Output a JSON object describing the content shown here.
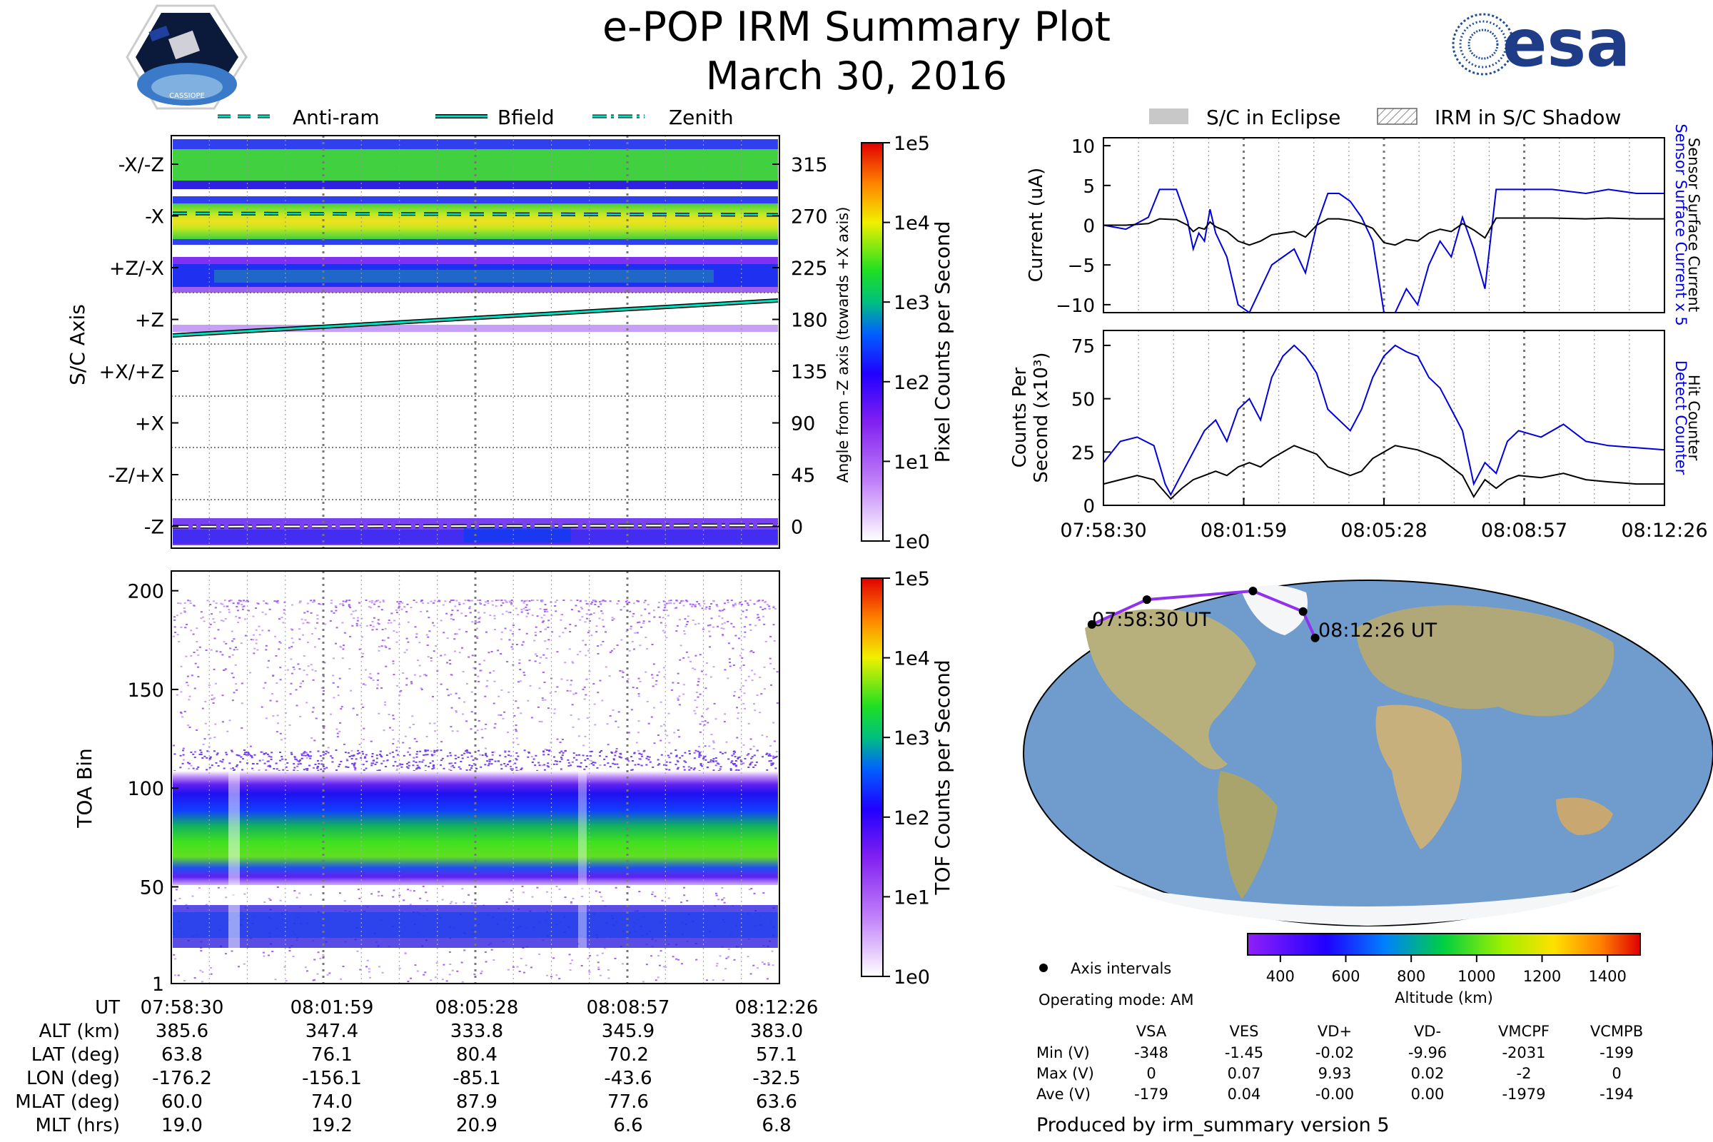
{
  "header": {
    "title": "e-POP IRM Summary Plot",
    "date": "March 30, 2016",
    "left_logo_text": "CASSIOPE",
    "right_logo_text": "esa"
  },
  "legend_top": {
    "items": [
      {
        "label": "Anti-ram",
        "style": "dashed"
      },
      {
        "label": "Bfield",
        "style": "solid"
      },
      {
        "label": "Zenith",
        "style": "dashdot"
      }
    ],
    "line_color": "#00e0c0"
  },
  "legend_right": {
    "items": [
      {
        "label": "S/C in Eclipse",
        "style": "gray-fill"
      },
      {
        "label": "IRM in S/C Shadow",
        "style": "hatch"
      }
    ]
  },
  "chart_data": [
    {
      "id": "pixel_spectrogram",
      "type": "heatmap",
      "ylabel": "S/C Axis",
      "y_tick_labels": [
        "-X/-Z",
        "-X",
        "+Z/-X",
        "+Z",
        "+X/+Z",
        "+X",
        "-Z/+X",
        "-Z"
      ],
      "right_axis_label": "Angle from -Z axis (towards +X axis)",
      "right_tick_labels": [
        "315",
        "270",
        "225",
        "180",
        "135",
        "90",
        "45",
        "0"
      ],
      "colorbar_label": "Pixel Counts per Second",
      "colorbar_ticks": [
        "1e5",
        "1e4",
        "1e3",
        "1e2",
        "1e1",
        "1e0"
      ],
      "overlay_lines": [
        {
          "name": "Anti-ram",
          "angle_deg": 270,
          "style": "dashed"
        },
        {
          "name": "Bfield",
          "angle_start_deg": 165,
          "angle_end_deg": 195,
          "style": "solid"
        },
        {
          "name": "Zenith",
          "angle_deg": 0,
          "style": "dashdot"
        }
      ]
    },
    {
      "id": "tof_spectrogram",
      "type": "heatmap",
      "ylabel": "TOA Bin",
      "y_tick_labels": [
        "200",
        "150",
        "100",
        "50",
        "1"
      ],
      "ylim": [
        1,
        210
      ],
      "colorbar_label": "TOF Counts per Second",
      "colorbar_ticks": [
        "1e5",
        "1e4",
        "1e3",
        "1e2",
        "1e1",
        "1e0"
      ]
    },
    {
      "id": "current",
      "type": "line",
      "ylabel": "Current (uA)",
      "ylim": [
        -11,
        11
      ],
      "y_tick_labels": [
        "10",
        "5",
        "0",
        "−5",
        "−10"
      ],
      "right_label_1": "Sensor Surface Current x 5",
      "right_label_2": "Sensor Surface Current",
      "x": [
        0,
        0.04,
        0.08,
        0.1,
        0.13,
        0.15,
        0.16,
        0.17,
        0.18,
        0.19,
        0.2,
        0.22,
        0.24,
        0.26,
        0.28,
        0.3,
        0.32,
        0.34,
        0.36,
        0.38,
        0.4,
        0.42,
        0.44,
        0.46,
        0.48,
        0.5,
        0.52,
        0.54,
        0.56,
        0.58,
        0.6,
        0.62,
        0.64,
        0.66,
        0.68,
        0.7,
        0.74,
        0.8,
        0.86,
        0.9,
        0.95,
        1.0
      ],
      "series": [
        {
          "name": "Sensor Surface Current x 5",
          "color": "#0000dd",
          "values": [
            0,
            -0.5,
            1,
            4.5,
            4.5,
            0.5,
            -3,
            -1,
            -2,
            2,
            -1,
            -4,
            -10,
            -11,
            -8,
            -5,
            -4,
            -3,
            -6,
            0,
            4,
            4,
            3,
            1,
            -2,
            -11,
            -11,
            -8,
            -10,
            -5,
            -2,
            -4,
            1,
            -3,
            -8,
            4.5,
            4.5,
            4.5,
            4,
            4.5,
            4,
            4
          ],
          "colors_note": ""
        },
        {
          "name": "Sensor Surface Current",
          "color": "#000000",
          "values": [
            0,
            0,
            0.2,
            0.8,
            0.7,
            0,
            -0.8,
            -0.3,
            -0.5,
            0.4,
            -0.2,
            -0.8,
            -2,
            -2.5,
            -2,
            -1.2,
            -1,
            -0.8,
            -1.5,
            0,
            0.8,
            0.8,
            0.6,
            0.2,
            -0.4,
            -2.2,
            -2.5,
            -1.8,
            -2,
            -1,
            -0.5,
            -0.8,
            0.2,
            -0.6,
            -1.6,
            0.9,
            0.9,
            0.9,
            0.8,
            0.9,
            0.8,
            0.8
          ]
        }
      ]
    },
    {
      "id": "counts",
      "type": "line",
      "ylabel_1": "Counts Per",
      "ylabel_2": "Second (x10³)",
      "ylim": [
        0,
        82
      ],
      "y_tick_labels": [
        "75",
        "50",
        "25",
        "0"
      ],
      "right_label_1": "Detect Counter",
      "right_label_2": "Hit Counter",
      "x_tick_labels": [
        "07:58:30",
        "08:01:59",
        "08:05:28",
        "08:08:57",
        "08:12:26"
      ],
      "x": [
        0,
        0.03,
        0.06,
        0.09,
        0.11,
        0.12,
        0.14,
        0.16,
        0.18,
        0.2,
        0.22,
        0.24,
        0.26,
        0.28,
        0.3,
        0.32,
        0.34,
        0.36,
        0.38,
        0.4,
        0.42,
        0.44,
        0.46,
        0.48,
        0.5,
        0.52,
        0.54,
        0.56,
        0.58,
        0.6,
        0.62,
        0.64,
        0.66,
        0.68,
        0.7,
        0.72,
        0.74,
        0.78,
        0.82,
        0.86,
        0.9,
        0.95,
        1.0
      ],
      "series": [
        {
          "name": "Detect Counter",
          "color": "#0000dd",
          "values": [
            20,
            30,
            32,
            28,
            10,
            5,
            15,
            25,
            35,
            40,
            30,
            45,
            50,
            40,
            60,
            70,
            75,
            70,
            62,
            45,
            40,
            35,
            45,
            60,
            70,
            75,
            72,
            70,
            60,
            55,
            45,
            35,
            10,
            20,
            15,
            30,
            35,
            32,
            38,
            30,
            28,
            27,
            26
          ]
        },
        {
          "name": "Hit Counter",
          "color": "#000000",
          "values": [
            10,
            12,
            14,
            12,
            6,
            3,
            8,
            12,
            14,
            16,
            14,
            18,
            20,
            18,
            22,
            25,
            28,
            26,
            24,
            18,
            16,
            14,
            16,
            22,
            25,
            28,
            27,
            26,
            24,
            22,
            18,
            14,
            4,
            12,
            8,
            12,
            14,
            13,
            15,
            12,
            11,
            10,
            10
          ]
        }
      ]
    }
  ],
  "map": {
    "start_label": "07:58:30 UT",
    "end_label": "08:12:26 UT",
    "colorbar_label": "Altitude (km)",
    "colorbar_ticks": [
      "400",
      "600",
      "800",
      "1000",
      "1200",
      "1400"
    ],
    "track": [
      {
        "lon": -176.2,
        "lat": 63.8
      },
      {
        "lon": -156.1,
        "lat": 76.1
      },
      {
        "lon": -85.1,
        "lat": 80.4
      },
      {
        "lon": -43.6,
        "lat": 70.2
      },
      {
        "lon": -32.5,
        "lat": 57.1
      }
    ],
    "ocean_color": "#6f9ccc",
    "land_color": "#b8b07c",
    "ice_color": "#f4f6f8"
  },
  "axis_legend": {
    "label": "Axis intervals"
  },
  "operating_mode": "Operating mode: AM",
  "voltage_table": {
    "headers": [
      "VSA",
      "VES",
      "VD+",
      "VD-",
      "VMCPF",
      "VCMPB"
    ],
    "rows": [
      {
        "label": "Min (V)",
        "values": [
          "-348",
          "-1.45",
          "-0.02",
          "-9.96",
          "-2031",
          "-199"
        ]
      },
      {
        "label": "Max (V)",
        "values": [
          "0",
          "0.07",
          "9.93",
          "0.02",
          "-2",
          "0"
        ]
      },
      {
        "label": "Ave (V)",
        "values": [
          "-179",
          "0.04",
          "-0.00",
          "0.00",
          "-1979",
          "-194"
        ]
      }
    ]
  },
  "info_table": {
    "row_labels": [
      "UT",
      "ALT (km)",
      "LAT (deg)",
      "LON (deg)",
      "MLAT (deg)",
      "MLT (hrs)"
    ],
    "columns": [
      [
        "07:58:30",
        "385.6",
        "63.8",
        "-176.2",
        "60.0",
        "19.0"
      ],
      [
        "08:01:59",
        "347.4",
        "76.1",
        "-156.1",
        "74.0",
        "19.2"
      ],
      [
        "08:05:28",
        "333.8",
        "80.4",
        "-85.1",
        "87.9",
        "20.9"
      ],
      [
        "08:08:57",
        "345.9",
        "70.2",
        "-43.6",
        "77.6",
        "6.6"
      ],
      [
        "08:12:26",
        "383.0",
        "57.1",
        "-32.5",
        "63.6",
        "6.8"
      ]
    ]
  },
  "footer": "Produced by irm_summary version 5"
}
